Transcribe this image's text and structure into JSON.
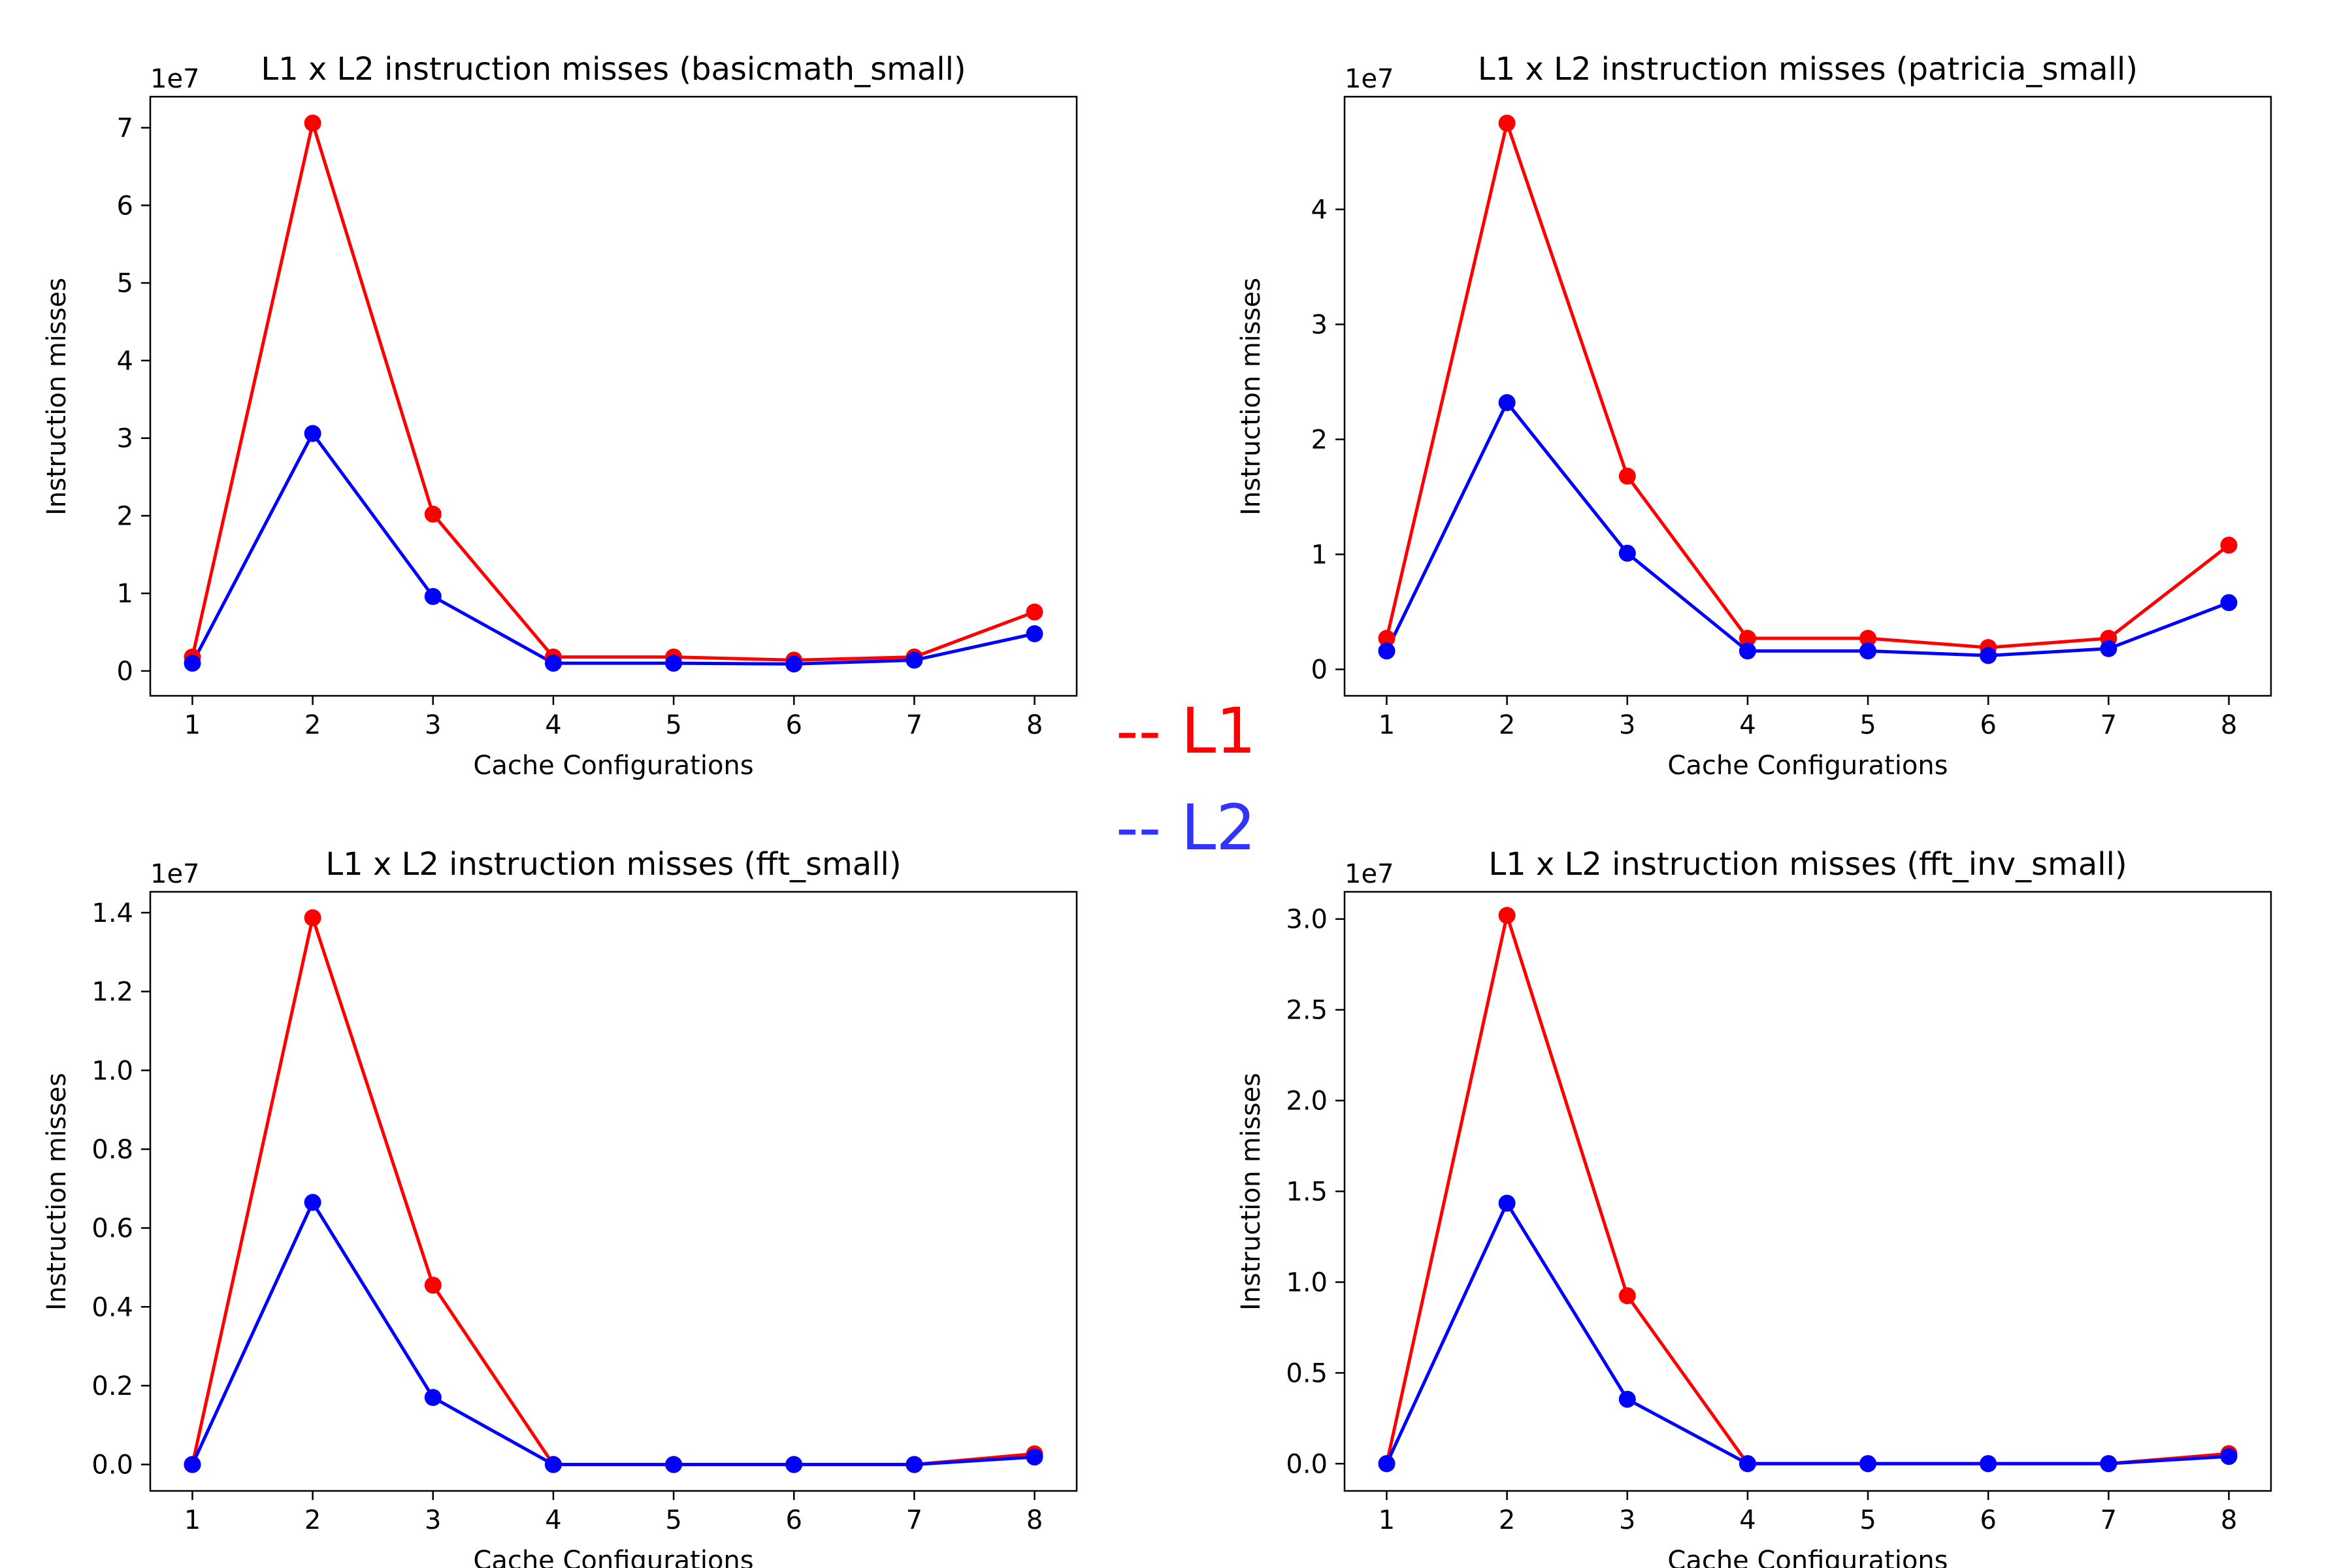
{
  "legend": {
    "entries": [
      {
        "label": "-- L1",
        "color": "#ff0000"
      },
      {
        "label": "-- L2",
        "color": "#3333ff"
      }
    ]
  },
  "chart_data": [
    {
      "type": "line",
      "title": "L1 x L2 instruction misses (basicmath_small)",
      "xlabel": "Cache Configurations",
      "ylabel": "Instruction misses",
      "y_offset_label": "1e7",
      "x": [
        1,
        2,
        3,
        4,
        5,
        6,
        7,
        8
      ],
      "xlim": [
        0.65,
        8.35
      ],
      "ylim": [
        -0.32,
        7.4
      ],
      "yticks": [
        0,
        1,
        2,
        3,
        4,
        5,
        6,
        7
      ],
      "ytick_labels": [
        "0",
        "1",
        "2",
        "3",
        "4",
        "5",
        "6",
        "7"
      ],
      "series": [
        {
          "color": "#ff0000",
          "values": [
            0.18,
            7.06,
            2.02,
            0.18,
            0.18,
            0.14,
            0.18,
            0.76
          ]
        },
        {
          "color": "#0000ff",
          "values": [
            0.1,
            3.06,
            0.96,
            0.1,
            0.1,
            0.09,
            0.14,
            0.48
          ]
        }
      ]
    },
    {
      "type": "line",
      "title": "L1 x L2 instruction misses (patricia_small)",
      "xlabel": "Cache Configurations",
      "ylabel": "Instruction misses",
      "y_offset_label": "1e7",
      "x": [
        1,
        2,
        3,
        4,
        5,
        6,
        7,
        8
      ],
      "xlim": [
        0.65,
        8.35
      ],
      "ylim": [
        -0.23,
        4.98
      ],
      "yticks": [
        0,
        1,
        2,
        3,
        4
      ],
      "ytick_labels": [
        "0",
        "1",
        "2",
        "3",
        "4"
      ],
      "series": [
        {
          "color": "#ff0000",
          "values": [
            0.27,
            4.75,
            1.68,
            0.27,
            0.27,
            0.19,
            0.27,
            1.08
          ]
        },
        {
          "color": "#0000ff",
          "values": [
            0.16,
            2.32,
            1.01,
            0.16,
            0.16,
            0.12,
            0.18,
            0.58
          ]
        }
      ]
    },
    {
      "type": "line",
      "title": "L1 x L2 instruction misses (fft_small)",
      "xlabel": "Cache Configurations",
      "ylabel": "Instruction misses",
      "y_offset_label": "1e7",
      "x": [
        1,
        2,
        3,
        4,
        5,
        6,
        7,
        8
      ],
      "xlim": [
        0.65,
        8.35
      ],
      "ylim": [
        -0.067,
        1.453
      ],
      "yticks": [
        0,
        0.2,
        0.4,
        0.6,
        0.8,
        1.0,
        1.2,
        1.4
      ],
      "ytick_labels": [
        "0.0",
        "0.2",
        "0.4",
        "0.6",
        "0.8",
        "1.0",
        "1.2",
        "1.4"
      ],
      "series": [
        {
          "color": "#ff0000",
          "values": [
            0.0,
            1.387,
            0.455,
            0.0,
            0.0,
            0.0,
            0.0,
            0.027
          ]
        },
        {
          "color": "#0000ff",
          "values": [
            0.0,
            0.665,
            0.17,
            0.0,
            0.0,
            0.0,
            0.0,
            0.019
          ]
        }
      ]
    },
    {
      "type": "line",
      "title": "L1 x L2 instruction misses (fft_inv_small)",
      "xlabel": "Cache Configurations",
      "ylabel": "Instruction misses",
      "y_offset_label": "1e7",
      "x": [
        1,
        2,
        3,
        4,
        5,
        6,
        7,
        8
      ],
      "xlim": [
        0.65,
        8.35
      ],
      "ylim": [
        -0.15,
        3.15
      ],
      "yticks": [
        0,
        0.5,
        1.0,
        1.5,
        2.0,
        2.5,
        3.0
      ],
      "ytick_labels": [
        "0.0",
        "0.5",
        "1.0",
        "1.5",
        "2.0",
        "2.5",
        "3.0"
      ],
      "series": [
        {
          "color": "#ff0000",
          "values": [
            0.0,
            3.02,
            0.925,
            0.0,
            0.0,
            0.0,
            0.0,
            0.055
          ]
        },
        {
          "color": "#0000ff",
          "values": [
            0.0,
            1.435,
            0.355,
            0.0,
            0.0,
            0.0,
            0.0,
            0.04
          ]
        }
      ]
    }
  ]
}
